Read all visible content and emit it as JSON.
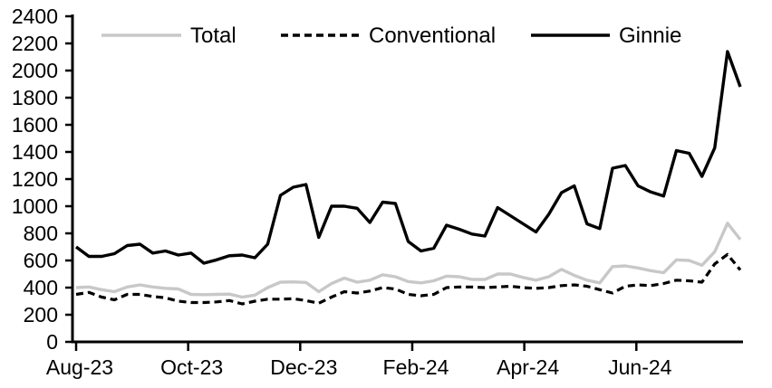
{
  "chart_data": {
    "type": "line",
    "title": "",
    "xlabel": "",
    "ylabel": "",
    "x_axis": {
      "tick_labels": [
        "Aug-23",
        "Oct-23",
        "Dec-23",
        "Feb-24",
        "Apr-24",
        "Jun-24"
      ],
      "frequency": "weekly"
    },
    "y_axis": {
      "min": 0,
      "max": 2400,
      "step": 200,
      "tick_labels": [
        "0",
        "200",
        "400",
        "600",
        "800",
        "1000",
        "1200",
        "1400",
        "1600",
        "1800",
        "2000",
        "2200",
        "2400"
      ]
    },
    "legend": {
      "position": "top",
      "entries": [
        {
          "label": "Total",
          "color": "#c8c8c8",
          "style": "solid"
        },
        {
          "label": "Conventional",
          "color": "#000000",
          "style": "dashed"
        },
        {
          "label": "Ginnie",
          "color": "#000000",
          "style": "solid"
        }
      ]
    },
    "series": [
      {
        "name": "Total",
        "color": "#c8c8c8",
        "style": "solid",
        "values": [
          400,
          405,
          385,
          370,
          405,
          420,
          405,
          395,
          390,
          350,
          348,
          350,
          352,
          330,
          345,
          400,
          440,
          442,
          438,
          370,
          430,
          470,
          440,
          455,
          495,
          480,
          445,
          435,
          450,
          485,
          480,
          460,
          460,
          500,
          500,
          475,
          455,
          480,
          535,
          490,
          455,
          435,
          555,
          560,
          545,
          525,
          510,
          605,
          600,
          565,
          665,
          875,
          755
        ]
      },
      {
        "name": "Conventional",
        "color": "#000000",
        "style": "dashed",
        "values": [
          350,
          365,
          330,
          310,
          350,
          350,
          335,
          325,
          300,
          290,
          290,
          295,
          305,
          280,
          300,
          315,
          315,
          318,
          305,
          285,
          330,
          370,
          360,
          375,
          400,
          390,
          350,
          340,
          350,
          400,
          405,
          405,
          400,
          405,
          410,
          400,
          395,
          400,
          415,
          420,
          410,
          385,
          360,
          410,
          420,
          415,
          430,
          455,
          450,
          440,
          575,
          645,
          530
        ]
      },
      {
        "name": "Ginnie",
        "color": "#000000",
        "style": "solid",
        "values": [
          700,
          630,
          630,
          650,
          710,
          720,
          655,
          670,
          640,
          655,
          580,
          605,
          635,
          640,
          620,
          720,
          1080,
          1140,
          1160,
          770,
          1000,
          1000,
          985,
          880,
          1030,
          1020,
          740,
          670,
          690,
          860,
          830,
          795,
          780,
          990,
          930,
          870,
          810,
          940,
          1100,
          1150,
          870,
          835,
          1280,
          1300,
          1150,
          1105,
          1075,
          1410,
          1390,
          1220,
          1430,
          2140,
          1880
        ]
      }
    ]
  }
}
